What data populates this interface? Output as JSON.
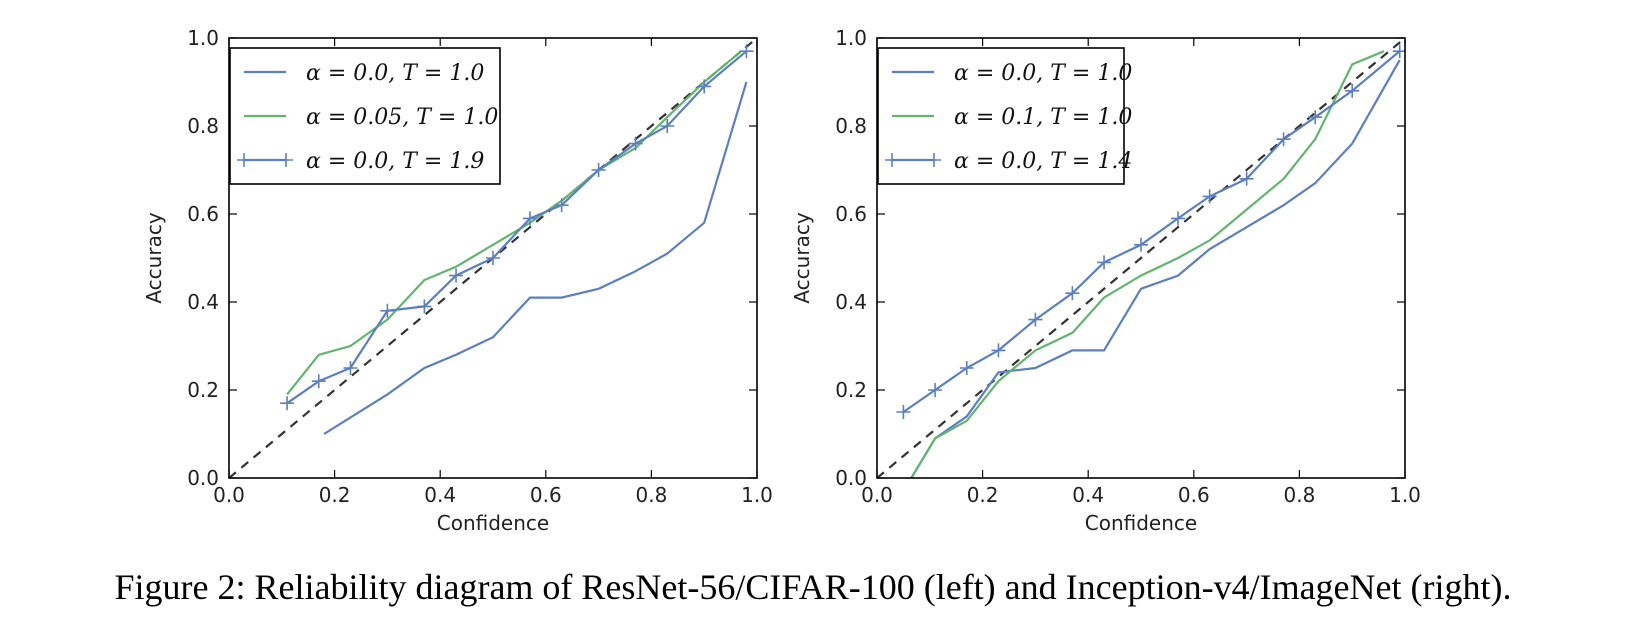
{
  "caption": "Figure 2: Reliability diagram of ResNet-56/CIFAR-100 (left) and Inception-v4/ImageNet (right).",
  "colors": {
    "blue": "#5b7fc0",
    "green": "#62b56e",
    "diagonal": "#333333",
    "axis": "#000000"
  },
  "chart_data": [
    {
      "type": "line",
      "xlabel": "Confidence",
      "ylabel": "Accuracy",
      "xlim": [
        0.0,
        1.0
      ],
      "ylim": [
        0.0,
        1.0
      ],
      "xticks": [
        "0.0",
        "0.2",
        "0.4",
        "0.6",
        "0.8",
        "1.0"
      ],
      "yticks": [
        "0.0",
        "0.2",
        "0.4",
        "0.6",
        "0.8",
        "1.0"
      ],
      "grid": false,
      "legend_position": "top-left",
      "diagonal": {
        "style": "dashed",
        "from": [
          0,
          0
        ],
        "to": [
          1,
          1
        ]
      },
      "series": [
        {
          "name": "α = 0.0, T = 1.0",
          "color": "blue",
          "marker": "none",
          "x": [
            0.18,
            0.3,
            0.37,
            0.43,
            0.5,
            0.57,
            0.63,
            0.7,
            0.77,
            0.83,
            0.9,
            0.98
          ],
          "y": [
            0.1,
            0.19,
            0.25,
            0.28,
            0.32,
            0.41,
            0.41,
            0.43,
            0.47,
            0.51,
            0.58,
            0.9
          ]
        },
        {
          "name": "α = 0.05, T = 1.0",
          "color": "green",
          "marker": "none",
          "x": [
            0.11,
            0.17,
            0.23,
            0.3,
            0.37,
            0.43,
            0.5,
            0.57,
            0.63,
            0.7,
            0.77,
            0.83,
            0.9,
            0.97
          ],
          "y": [
            0.19,
            0.28,
            0.3,
            0.36,
            0.45,
            0.48,
            0.53,
            0.58,
            0.63,
            0.7,
            0.75,
            0.82,
            0.9,
            0.97
          ]
        },
        {
          "name": "α = 0.0, T = 1.9",
          "color": "blue",
          "marker": "+",
          "x": [
            0.11,
            0.17,
            0.23,
            0.3,
            0.37,
            0.43,
            0.5,
            0.57,
            0.63,
            0.7,
            0.77,
            0.83,
            0.9,
            0.98
          ],
          "y": [
            0.17,
            0.22,
            0.25,
            0.38,
            0.39,
            0.46,
            0.5,
            0.59,
            0.62,
            0.7,
            0.76,
            0.8,
            0.89,
            0.97
          ]
        }
      ]
    },
    {
      "type": "line",
      "xlabel": "Confidence",
      "ylabel": "Accuracy",
      "xlim": [
        0.0,
        1.0
      ],
      "ylim": [
        0.0,
        1.0
      ],
      "xticks": [
        "0.0",
        "0.2",
        "0.4",
        "0.6",
        "0.8",
        "1.0"
      ],
      "yticks": [
        "0.0",
        "0.2",
        "0.4",
        "0.6",
        "0.8",
        "1.0"
      ],
      "grid": false,
      "legend_position": "top-left",
      "diagonal": {
        "style": "dashed",
        "from": [
          0,
          0
        ],
        "to": [
          1,
          1
        ]
      },
      "series": [
        {
          "name": "α = 0.0, T = 1.0",
          "color": "blue",
          "marker": "none",
          "x": [
            0.05,
            0.11,
            0.17,
            0.23,
            0.3,
            0.37,
            0.43,
            0.5,
            0.57,
            0.63,
            0.7,
            0.77,
            0.83,
            0.9,
            0.99
          ],
          "y": [
            -0.03,
            0.09,
            0.14,
            0.24,
            0.25,
            0.29,
            0.29,
            0.43,
            0.46,
            0.52,
            0.57,
            0.62,
            0.67,
            0.76,
            0.95
          ]
        },
        {
          "name": "α = 0.1, T = 1.0",
          "color": "green",
          "marker": "none",
          "x": [
            0.05,
            0.11,
            0.17,
            0.23,
            0.3,
            0.37,
            0.43,
            0.5,
            0.57,
            0.63,
            0.7,
            0.77,
            0.83,
            0.9,
            0.96
          ],
          "y": [
            -0.03,
            0.09,
            0.13,
            0.22,
            0.29,
            0.33,
            0.41,
            0.46,
            0.5,
            0.54,
            0.61,
            0.68,
            0.77,
            0.94,
            0.97
          ]
        },
        {
          "name": "α = 0.0, T = 1.4",
          "color": "blue",
          "marker": "+",
          "x": [
            0.05,
            0.11,
            0.17,
            0.23,
            0.3,
            0.37,
            0.43,
            0.5,
            0.57,
            0.63,
            0.7,
            0.77,
            0.83,
            0.9,
            0.99
          ],
          "y": [
            0.15,
            0.2,
            0.25,
            0.29,
            0.36,
            0.42,
            0.49,
            0.53,
            0.59,
            0.64,
            0.68,
            0.77,
            0.82,
            0.88,
            0.97
          ]
        }
      ]
    }
  ]
}
